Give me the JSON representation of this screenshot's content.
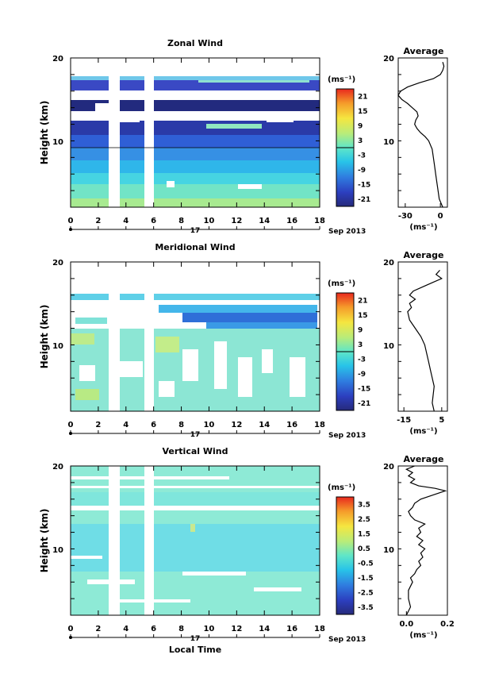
{
  "figure": {
    "date_label": "17",
    "month_label": "Sep 2013",
    "xlabel": "Local Time"
  },
  "chart_data": [
    {
      "type": "heatmap",
      "title": "Zonal Wind",
      "ylabel": "Height (km)",
      "xlim": [
        0,
        18
      ],
      "ylim": [
        2,
        20
      ],
      "x_ticks": [
        0,
        2,
        4,
        6,
        8,
        10,
        12,
        14,
        16,
        18
      ],
      "x_tick_labels": [
        "0",
        "2",
        "4",
        "6",
        "8",
        "10",
        "12",
        "14",
        "16",
        "18"
      ],
      "y_tick_labels": [
        "10",
        "20"
      ],
      "gaps": [
        [
          2.7,
          3.5
        ],
        [
          5.3,
          5.9
        ]
      ],
      "colorbar": {
        "unit": "(ms⁻¹)",
        "range": [
          -24,
          24
        ],
        "tick_labels": [
          "21",
          "15",
          "9",
          "3",
          "-3",
          "-9",
          "-15",
          "-21"
        ],
        "zero_line": true
      },
      "profile": {
        "title": "Average",
        "unit": "(ms⁻¹)",
        "xlim": [
          -36,
          6
        ],
        "x_tick_labels": [
          "-30",
          "0"
        ],
        "y_tick_labels": [
          "10",
          "20"
        ],
        "x": [
          2,
          -1,
          -2,
          -3,
          -4,
          -5,
          -6,
          -7,
          -10,
          -13,
          -17,
          -20,
          -22,
          -21,
          -19,
          -20,
          -24,
          -28,
          -33,
          -36,
          -34,
          -28,
          -18,
          -6,
          0,
          2,
          3,
          2
        ],
        "y": [
          2,
          3,
          4,
          5,
          6,
          7,
          8,
          9,
          10,
          10.5,
          11,
          11.5,
          12,
          12.5,
          13,
          13.5,
          14,
          14.5,
          15,
          15.5,
          16,
          16.5,
          17,
          17.5,
          18,
          18.5,
          19,
          19.5
        ]
      }
    },
    {
      "type": "heatmap",
      "title": "Meridional Wind",
      "ylabel": "Height (km)",
      "xlim": [
        0,
        18
      ],
      "ylim": [
        2,
        20
      ],
      "x_ticks": [
        0,
        2,
        4,
        6,
        8,
        10,
        12,
        14,
        16,
        18
      ],
      "x_tick_labels": [
        "0",
        "2",
        "4",
        "6",
        "8",
        "10",
        "12",
        "14",
        "16",
        "18"
      ],
      "y_tick_labels": [
        "10",
        "20"
      ],
      "gaps": [
        [
          2.7,
          3.5
        ],
        [
          5.3,
          5.9
        ]
      ],
      "colorbar": {
        "unit": "(ms⁻¹)",
        "range": [
          -24,
          24
        ],
        "tick_labels": [
          "21",
          "15",
          "9",
          "3",
          "-3",
          "-9",
          "-15",
          "-21"
        ],
        "zero_line": true
      },
      "profile": {
        "title": "Average",
        "unit": "(ms⁻¹)",
        "xlim": [
          -18,
          8
        ],
        "x_tick_labels": [
          "-15",
          "5"
        ],
        "y_tick_labels": [
          "10",
          "20"
        ],
        "x": [
          1,
          0,
          0.5,
          1,
          0,
          -1,
          -2,
          -3,
          -4,
          -6,
          -9,
          -12,
          -13,
          -11,
          -12,
          -9,
          -12,
          -10,
          -5,
          0,
          5,
          2,
          4
        ],
        "y": [
          2,
          3,
          4,
          5,
          6,
          7,
          8,
          9,
          10,
          11,
          12,
          13,
          14,
          14.5,
          15,
          15.5,
          16,
          16.5,
          17,
          17.5,
          18,
          18.5,
          19
        ]
      }
    },
    {
      "type": "heatmap",
      "title": "Vertical Wind",
      "ylabel": "Height (km)",
      "xlim": [
        0,
        18
      ],
      "ylim": [
        2,
        20
      ],
      "x_ticks": [
        0,
        2,
        4,
        6,
        8,
        10,
        12,
        14,
        16,
        18
      ],
      "x_tick_labels": [
        "0",
        "2",
        "4",
        "6",
        "8",
        "10",
        "12",
        "14",
        "16",
        "18"
      ],
      "y_tick_labels": [
        "10",
        "20"
      ],
      "gaps": [
        [
          2.7,
          3.5
        ],
        [
          5.3,
          5.9
        ]
      ],
      "colorbar": {
        "unit": "(ms⁻¹)",
        "range": [
          -4,
          4
        ],
        "tick_labels": [
          "3.5",
          "2.5",
          "1.5",
          "0.5",
          "-0.5",
          "-1.5",
          "-2.5",
          "-3.5"
        ],
        "zero_line": false
      },
      "profile": {
        "title": "Average",
        "unit": "(ms⁻¹)",
        "xlim": [
          -0.04,
          0.2
        ],
        "x_tick_labels": [
          "0.0",
          "0.2"
        ],
        "y_tick_labels": [
          "10",
          "20"
        ],
        "x": [
          0,
          0.02,
          0.01,
          0.01,
          0.03,
          0.02,
          0.04,
          0.05,
          0.07,
          0.06,
          0.08,
          0.07,
          0.09,
          0.06,
          0.08,
          0.05,
          0.07,
          0.06,
          0.09,
          0.04,
          0.02,
          0.01,
          0.03,
          0.04,
          0.07,
          0.13,
          0.19,
          0.14,
          0.06,
          0.02,
          0.04,
          0.01,
          0.03,
          0.0,
          0.04
        ],
        "y": [
          2,
          3,
          4,
          5,
          6,
          6.5,
          7,
          7.5,
          8,
          8.5,
          9,
          9.5,
          10,
          10.5,
          11,
          11.5,
          12,
          12.5,
          13,
          13.5,
          14,
          14.5,
          15,
          15.5,
          16,
          16.5,
          17,
          17.3,
          17.6,
          18,
          18.4,
          18.8,
          19.2,
          19.6,
          20
        ]
      }
    }
  ]
}
